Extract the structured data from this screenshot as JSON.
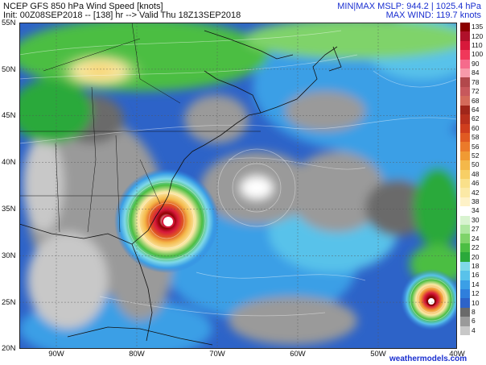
{
  "header": {
    "title": "NCEP GFS 850 hPa Wind Speed [knots]",
    "init": "Init: 00Z08SEP2018 -- [138] hr --> Valid Thu 18Z13SEP2018",
    "mslp": "MIN|MAX MSLP: 944.2 | 1025.4 hPa",
    "maxwind": "MAX WIND: 119.7 knots"
  },
  "axes": {
    "lat_labels": [
      "55N",
      "50N",
      "45N",
      "40N",
      "35N",
      "30N",
      "25N",
      "20N"
    ],
    "lon_labels": [
      "90W",
      "80W",
      "70W",
      "60W",
      "50W",
      "40W"
    ]
  },
  "colorbar": {
    "labels": [
      "135",
      "120",
      "110",
      "100",
      "90",
      "84",
      "78",
      "72",
      "68",
      "64",
      "62",
      "60",
      "58",
      "56",
      "52",
      "50",
      "48",
      "46",
      "42",
      "38",
      "34",
      "30",
      "27",
      "24",
      "22",
      "20",
      "18",
      "16",
      "14",
      "12",
      "10",
      "8",
      "6",
      "4"
    ],
    "colors": [
      "#8b0000",
      "#b0102a",
      "#d7193b",
      "#f0385a",
      "#f56b8c",
      "#f79aaa",
      "#b2484c",
      "#c7585c",
      "#d46a5a",
      "#a0261a",
      "#b8301d",
      "#cf3e1e",
      "#e05a22",
      "#eb7a2a",
      "#f09a33",
      "#f4b84a",
      "#f7cf66",
      "#f9e08a",
      "#fbe9a6",
      "#fef2c8",
      "#ffffff",
      "#d8f3d0",
      "#aee6a0",
      "#7fd36a",
      "#4cbe43",
      "#2aa93a",
      "#7fd9e8",
      "#59c2ea",
      "#3b9fe6",
      "#2f7fdc",
      "#2d63c8",
      "#6a6a6a",
      "#9a9a9a",
      "#c8c8c8"
    ]
  },
  "credit": "weathermodels.com"
}
